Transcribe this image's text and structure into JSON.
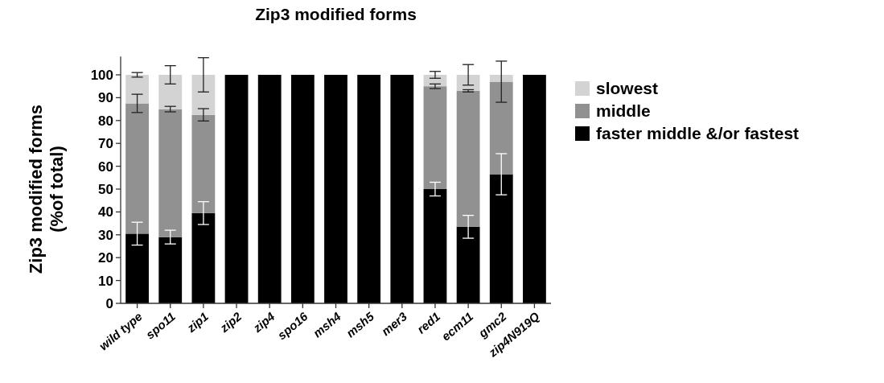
{
  "chart_data": {
    "type": "bar",
    "title": "Zip3 modified forms",
    "ylabel": "Zip3 modified forms\n(%of total)",
    "stacked": true,
    "legend": "right",
    "categories": [
      "wild type",
      "spo11",
      "zip1",
      "zip2",
      "zip4",
      "spo16",
      "msh4",
      "msh5",
      "mer3",
      "red1",
      "ecm11",
      "gmc2",
      "zip4N919Q"
    ],
    "series": [
      {
        "name": "faster middle &/or fastest",
        "color": "#000000",
        "values": [
          30.5,
          29,
          39.5,
          100,
          100,
          100,
          100,
          100,
          100,
          50,
          33.5,
          56.5,
          100
        ],
        "errors": [
          5,
          3,
          5,
          null,
          null,
          null,
          null,
          null,
          null,
          3,
          5,
          9,
          null
        ]
      },
      {
        "name": "middle",
        "color": "#919191",
        "values": [
          57,
          56,
          43,
          null,
          null,
          null,
          null,
          null,
          null,
          45,
          59.5,
          40.5,
          null
        ],
        "errors": [
          4,
          1.2,
          2.7,
          null,
          null,
          null,
          null,
          null,
          null,
          1,
          0.5,
          9,
          null
        ]
      },
      {
        "name": "slowest",
        "color": "#d3d3d3",
        "values": [
          12.5,
          15,
          17.5,
          null,
          null,
          null,
          null,
          null,
          null,
          5,
          7,
          3,
          null
        ],
        "errors": [
          1,
          4,
          7.5,
          null,
          null,
          null,
          null,
          null,
          null,
          1.5,
          4.5,
          null,
          null
        ]
      }
    ],
    "ylim": [
      0,
      108
    ],
    "yticks": [
      0,
      10,
      20,
      30,
      40,
      50,
      60,
      70,
      80,
      90,
      100
    ]
  }
}
